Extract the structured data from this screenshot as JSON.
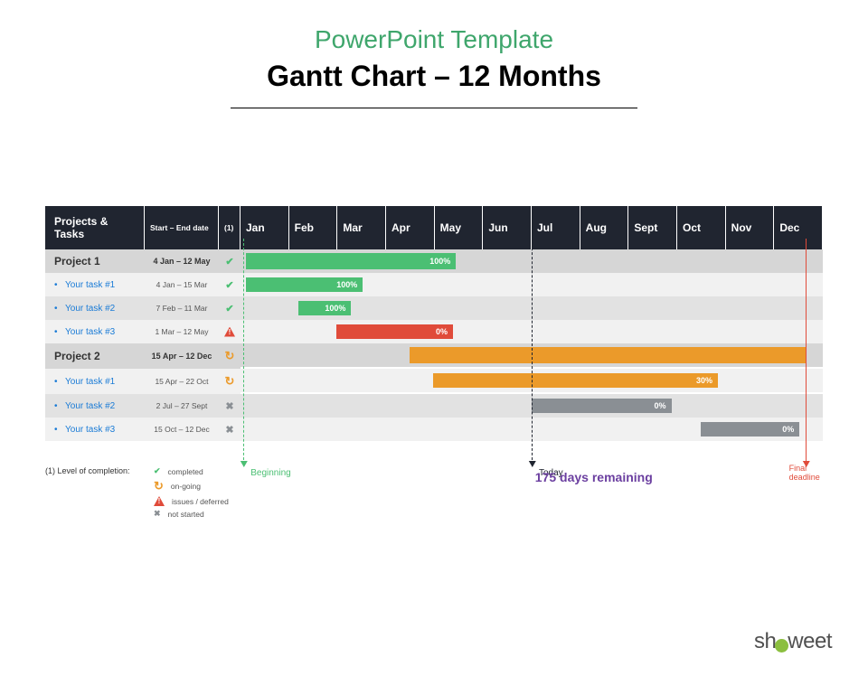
{
  "header": {
    "subtitle": "PowerPoint Template",
    "subtitle_color": "#3fa66c",
    "title": "Gantt Chart – 12 Months",
    "title_color": "#000000"
  },
  "columns": {
    "projects_label": "Projects & Tasks",
    "dates_label": "Start – End date",
    "completion_label": "(1)",
    "months": [
      "Jan",
      "Feb",
      "Mar",
      "Apr",
      "May",
      "Jun",
      "Jul",
      "Aug",
      "Sept",
      "Oct",
      "Nov",
      "Dec"
    ]
  },
  "colors": {
    "header_bg": "#202530",
    "project_row_bg": "#d6d6d6",
    "task_row_even_bg": "#f1f1f1",
    "task_row_odd_bg": "#e2e2e2",
    "green": "#4bbf73",
    "orange": "#eb9a2a",
    "red": "#e04b3a",
    "gray": "#8a8f94",
    "purple": "#6b3fa0",
    "task_link": "#1a7bd6"
  },
  "status_icons": {
    "completed": {
      "type": "check",
      "color": "#4bbf73"
    },
    "ongoing": {
      "type": "refresh",
      "color": "#eb9a2a"
    },
    "issue": {
      "type": "alert",
      "color": "#e04b3a"
    },
    "notstarted": {
      "type": "x",
      "color": "#8a8f94"
    }
  },
  "rows": [
    {
      "kind": "project",
      "name": "Project 1",
      "dates": "4 Jan – 12 May",
      "status": "completed",
      "bar": {
        "start_pct": 1,
        "width_pct": 36,
        "color": "#4bbf73",
        "label": "100%"
      }
    },
    {
      "kind": "task",
      "stripe": "even",
      "name": "Your task #1",
      "dates": "4 Jan – 15 Mar",
      "status": "completed",
      "bar": {
        "start_pct": 1,
        "width_pct": 20,
        "color": "#4bbf73",
        "label": "100%"
      }
    },
    {
      "kind": "task",
      "stripe": "odd",
      "name": "Your task #2",
      "dates": "7 Feb – 11 Mar",
      "status": "completed",
      "bar": {
        "start_pct": 10,
        "width_pct": 9,
        "color": "#4bbf73",
        "label": "100%"
      }
    },
    {
      "kind": "task",
      "stripe": "even",
      "name": "Your task #3",
      "dates": "1 Mar – 12 May",
      "status": "issue",
      "bar": {
        "start_pct": 16.5,
        "width_pct": 20,
        "color": "#e04b3a",
        "label": "0%"
      }
    },
    {
      "kind": "project",
      "name": "Project 2",
      "dates": "15 Apr – 12 Dec",
      "status": "ongoing",
      "bar": {
        "start_pct": 29,
        "width_pct": 68,
        "color": "#eb9a2a",
        "label": ""
      }
    },
    {
      "kind": "task",
      "stripe": "even",
      "name": "Your task #1",
      "dates": "15 Apr – 22 Oct",
      "status": "ongoing",
      "bar": {
        "start_pct": 33,
        "width_pct": 49,
        "color": "#eb9a2a",
        "label": "30%"
      }
    },
    {
      "kind": "task",
      "stripe": "odd",
      "name": "Your task #2",
      "dates": "2 Jul – 27 Sept",
      "status": "notstarted",
      "bar": {
        "start_pct": 50,
        "width_pct": 24,
        "color": "#8a8f94",
        "label": "0%"
      }
    },
    {
      "kind": "task",
      "stripe": "even",
      "name": "Your task #3",
      "dates": "15 Oct – 12 Dec",
      "status": "notstarted",
      "bar": {
        "start_pct": 79,
        "width_pct": 17,
        "color": "#8a8f94",
        "label": "0%"
      }
    }
  ],
  "markers": {
    "beginning": {
      "month_pct": 0.5,
      "color": "#4bbf73",
      "label": "Beginning"
    },
    "today": {
      "month_pct": 50,
      "color": "#202530",
      "label": "Today"
    },
    "deadline": {
      "month_pct": 97,
      "color": "#e04b3a",
      "label": "Final deadline",
      "solid": true
    }
  },
  "legend": {
    "title": "(1) Level of completion:",
    "items": [
      {
        "status": "completed",
        "label": "completed"
      },
      {
        "status": "ongoing",
        "label": "on-going"
      },
      {
        "status": "issue",
        "label": "issues / deferred"
      },
      {
        "status": "notstarted",
        "label": "not started"
      }
    ]
  },
  "remaining": {
    "text": "175 days remaining",
    "left_pct": 63
  },
  "logo": {
    "pre": "sh",
    "post": "weet",
    "dot_color": "#8bbf3f"
  }
}
